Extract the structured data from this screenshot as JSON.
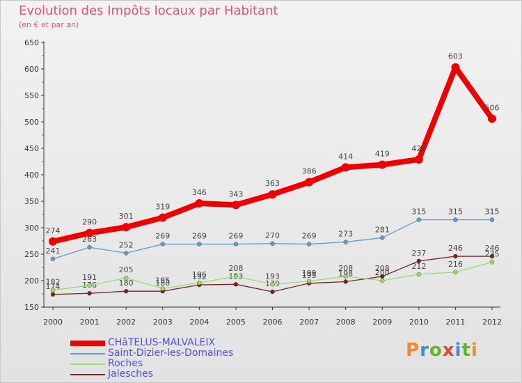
{
  "title": "Evolution des Impôts locaux par Habitant",
  "subtitle": "(en € et par an)",
  "logo": {
    "text": "Proxiti",
    "letter_colors": [
      "#f08c28",
      "#3c8cdc",
      "#64b428",
      "#e0463c",
      "#3c8cdc",
      "#64b428",
      "#f08c28"
    ]
  },
  "chart_data": {
    "type": "line",
    "categories": [
      "2000",
      "2001",
      "2002",
      "2003",
      "2004",
      "2005",
      "2006",
      "2007",
      "2008",
      "2009",
      "2010",
      "2011",
      "2012"
    ],
    "ylim": [
      150,
      650
    ],
    "yticks": [
      150,
      200,
      250,
      300,
      350,
      400,
      450,
      500,
      550,
      600,
      650
    ],
    "grid": false,
    "legend_position": "bottom-left",
    "series": [
      {
        "name": "CHâTELUS-MALVALEIX",
        "color": "#ee0000",
        "values": [
          274,
          290,
          301,
          319,
          346,
          343,
          363,
          386,
          414,
          419,
          429,
          603,
          506
        ]
      },
      {
        "name": "Saint-Dizier-les-Domaines",
        "color": "#6699cc",
        "values": [
          241,
          263,
          252,
          269,
          269,
          269,
          270,
          269,
          273,
          281,
          315,
          315,
          315
        ]
      },
      {
        "name": "Roches",
        "color": "#99dd66",
        "values": [
          182,
          191,
          205,
          185,
          196,
          208,
          193,
          199,
          208,
          200,
          212,
          216,
          235
        ]
      },
      {
        "name": "Jalesches",
        "color": "#772222",
        "values": [
          174,
          176,
          180,
          180,
          192,
          193,
          179,
          195,
          198,
          208,
          237,
          246,
          246
        ]
      }
    ]
  }
}
